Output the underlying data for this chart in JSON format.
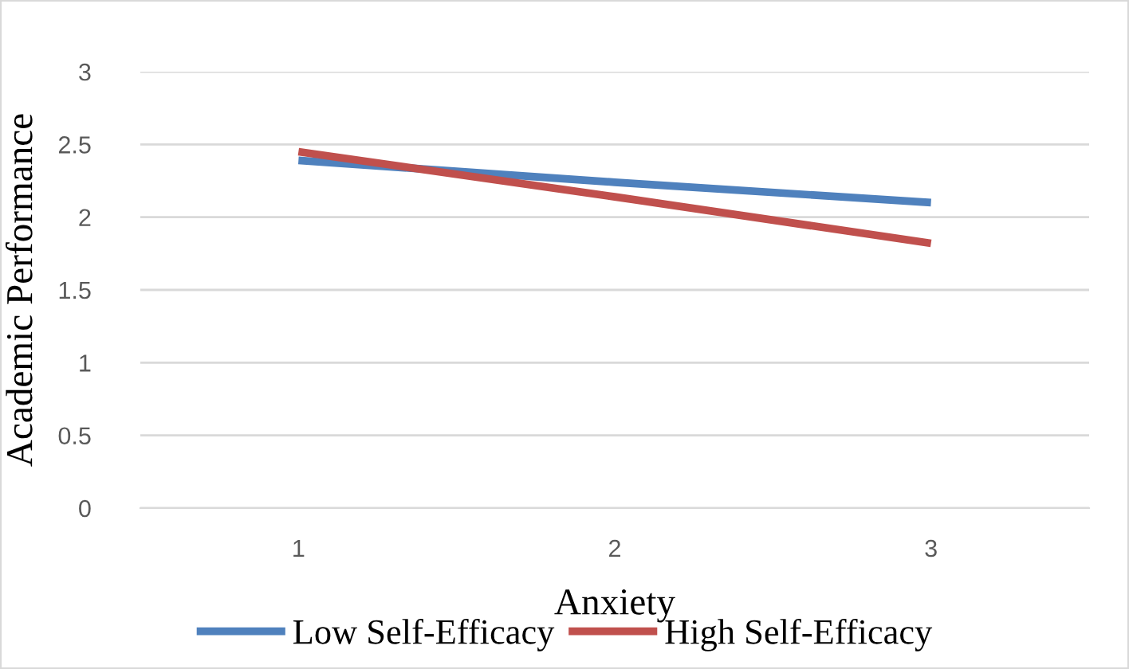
{
  "chart_data": {
    "type": "line",
    "xlabel": "Anxiety",
    "ylabel": "Academic Performance",
    "categories": [
      "1",
      "2",
      "3"
    ],
    "series": [
      {
        "name": "Low Self-Efficacy",
        "color": "#4f81bd",
        "values": [
          2.39,
          2.24,
          2.1
        ]
      },
      {
        "name": "High Self-Efficacy",
        "color": "#c0504d",
        "values": [
          2.45,
          2.14,
          1.82
        ]
      }
    ],
    "ylim": [
      0,
      3
    ],
    "yticks": [
      0,
      0.5,
      1,
      1.5,
      2,
      2.5,
      3
    ],
    "grid": "y",
    "legend": "bottom",
    "marker": "none",
    "line_style": "solid"
  }
}
